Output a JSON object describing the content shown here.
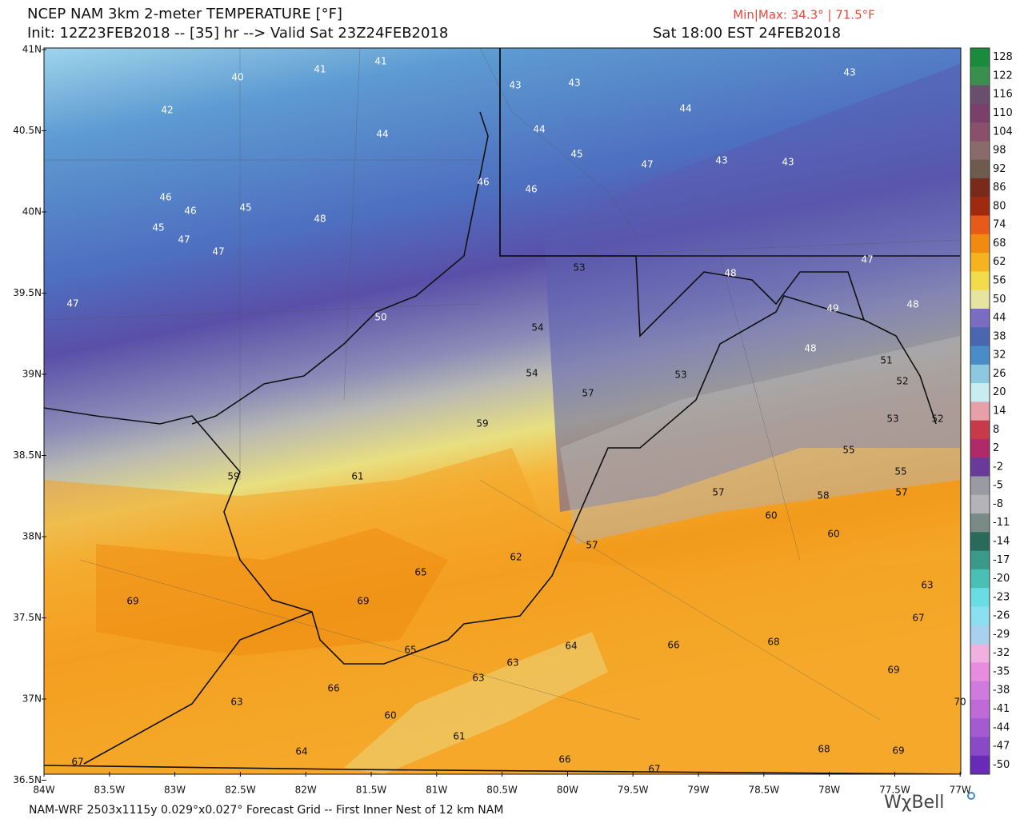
{
  "header": {
    "title": "NCEP NAM 3km 2-meter TEMPERATURE [°F]",
    "init": "Init: 12Z23FEB2018 -- [35] hr --> Valid Sat 23Z24FEB2018",
    "local_time": "Sat 18:00 EST 24FEB2018",
    "minmax": "Min|Max: 34.3° | 71.5°F"
  },
  "map": {
    "lat_labels": [
      "41N",
      "40.5N",
      "40N",
      "39.5N",
      "39N",
      "38.5N",
      "38N",
      "37.5N",
      "37N",
      "36.5N"
    ],
    "lon_labels": [
      "84W",
      "83.5W",
      "83W",
      "82.5W",
      "82W",
      "81.5W",
      "81W",
      "80.5W",
      "80W",
      "79.5W",
      "79W",
      "78.5W",
      "78W",
      "77.5W",
      "77W"
    ],
    "point_labels": [
      "41",
      "40",
      "41",
      "42",
      "44",
      "46",
      "46",
      "46",
      "45",
      "48",
      "45",
      "47",
      "47",
      "47",
      "50",
      "53",
      "54",
      "54",
      "57",
      "59",
      "61",
      "59",
      "62",
      "65",
      "69",
      "69",
      "65",
      "66",
      "63",
      "60",
      "61",
      "64",
      "67",
      "66",
      "67",
      "63",
      "63",
      "64",
      "57",
      "57",
      "60",
      "58",
      "60",
      "55",
      "55",
      "57",
      "53",
      "52",
      "51",
      "52",
      "63",
      "67",
      "68",
      "66",
      "69",
      "70",
      "68",
      "69",
      "53",
      "48",
      "49",
      "48",
      "47",
      "48",
      "43",
      "43",
      "44",
      "45",
      "46",
      "47",
      "44",
      "43",
      "43",
      "43"
    ]
  },
  "colorbar": {
    "labels": [
      "128",
      "122",
      "116",
      "110",
      "104",
      "98",
      "92",
      "86",
      "80",
      "74",
      "68",
      "62",
      "56",
      "50",
      "44",
      "38",
      "32",
      "26",
      "20",
      "14",
      "8",
      "2",
      "-2",
      "-5",
      "-8",
      "-11",
      "-14",
      "-17",
      "-20",
      "-23",
      "-26",
      "-29",
      "-32",
      "-35",
      "-38",
      "-41",
      "-44",
      "-47",
      "-50"
    ],
    "colors": [
      "#1a8a3c",
      "#3b8f4e",
      "#6a4e6e",
      "#7a3f6a",
      "#8a4f6a",
      "#8a6a6a",
      "#6e5a4e",
      "#7a2a1a",
      "#a02a10",
      "#e85a1a",
      "#f08a10",
      "#f6b320",
      "#f2dc4c",
      "#e6e4a0",
      "#7a6cc0",
      "#4a66b0",
      "#4a8cc8",
      "#8cc8e0",
      "#c8ecf0",
      "#e8a0a8",
      "#c83a4a",
      "#b02a6a",
      "#6a3a9a",
      "#9a9aa4",
      "#b4b4b8",
      "#7a8a84",
      "#2a6a5a",
      "#3a9a8a",
      "#4ac0b4",
      "#6adce4",
      "#8ae0f0",
      "#aad0f0",
      "#f0b0e0",
      "#e88ce0",
      "#d07ae0",
      "#c06ad8",
      "#a45ad0",
      "#8a4ac8",
      "#6a2ab8"
    ]
  },
  "footer": {
    "grid_info": "NAM-WRF 2503x1115y 0.029°x0.027° Forecast Grid -- First Inner Nest of 12 km NAM",
    "brand": "WχBell"
  }
}
